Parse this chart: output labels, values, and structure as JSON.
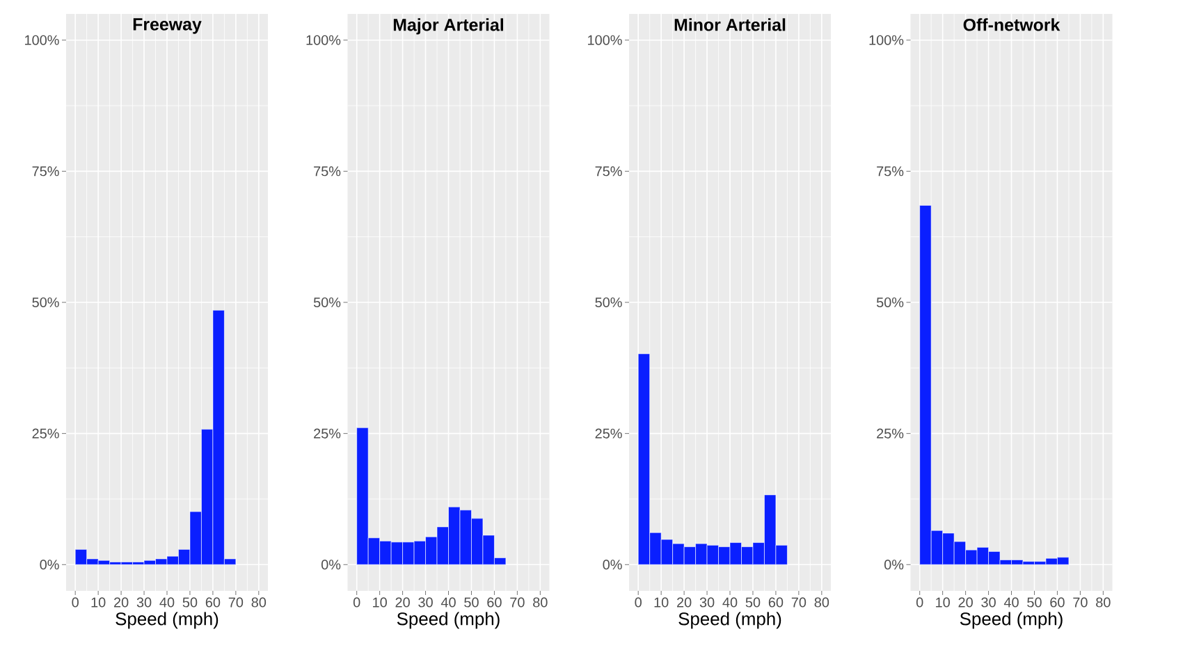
{
  "chart_data": [
    {
      "type": "histogram",
      "title": "Freeway",
      "xlabel": "Speed (mph)",
      "color": "#0a1fff",
      "grid": true,
      "bins": [
        0,
        5,
        10,
        15,
        20,
        25,
        30,
        35,
        40,
        45,
        50,
        55,
        60,
        65,
        70
      ],
      "values": [
        2.9,
        1.1,
        0.8,
        0.5,
        0.5,
        0.5,
        0.8,
        1.1,
        1.6,
        2.9,
        10.1,
        25.8,
        48.5,
        1.1
      ],
      "xlim": [
        -4,
        84
      ],
      "xticks": [
        0,
        10,
        20,
        30,
        40,
        50,
        60,
        70,
        80
      ],
      "ylim": [
        -5,
        105
      ],
      "yticks": [
        {
          "value": 0,
          "label": "0%"
        },
        {
          "value": 25,
          "label": "25%"
        },
        {
          "value": 50,
          "label": "50%"
        },
        {
          "value": 75,
          "label": "75%"
        },
        {
          "value": 100,
          "label": "100%"
        }
      ]
    },
    {
      "type": "histogram",
      "title": "Major Arterial",
      "xlabel": "Speed (mph)",
      "color": "#0a1fff",
      "grid": true,
      "bins": [
        0,
        5,
        10,
        15,
        20,
        25,
        30,
        35,
        40,
        45,
        50,
        55,
        60,
        65,
        70
      ],
      "values": [
        26.1,
        5.1,
        4.5,
        4.3,
        4.3,
        4.5,
        5.3,
        7.2,
        11.0,
        10.4,
        8.8,
        5.6,
        1.3,
        0
      ],
      "xlim": [
        -4,
        84
      ],
      "xticks": [
        0,
        10,
        20,
        30,
        40,
        50,
        60,
        70,
        80
      ],
      "ylim": [
        -5,
        105
      ],
      "yticks": [
        {
          "value": 0,
          "label": "0%"
        },
        {
          "value": 25,
          "label": "25%"
        },
        {
          "value": 50,
          "label": "50%"
        },
        {
          "value": 75,
          "label": "75%"
        },
        {
          "value": 100,
          "label": "100%"
        }
      ]
    },
    {
      "type": "histogram",
      "title": "Minor Arterial",
      "xlabel": "Speed (mph)",
      "color": "#0a1fff",
      "grid": true,
      "bins": [
        0,
        5,
        10,
        15,
        20,
        25,
        30,
        35,
        40,
        45,
        50,
        55,
        60,
        65,
        70
      ],
      "values": [
        40.2,
        6.1,
        4.8,
        4.0,
        3.4,
        4.0,
        3.7,
        3.4,
        4.2,
        3.4,
        4.2,
        13.3,
        3.7,
        0
      ],
      "xlim": [
        -4,
        84
      ],
      "xticks": [
        0,
        10,
        20,
        30,
        40,
        50,
        60,
        70,
        80
      ],
      "ylim": [
        -5,
        105
      ],
      "yticks": [
        {
          "value": 0,
          "label": "0%"
        },
        {
          "value": 25,
          "label": "25%"
        },
        {
          "value": 50,
          "label": "50%"
        },
        {
          "value": 75,
          "label": "75%"
        },
        {
          "value": 100,
          "label": "100%"
        }
      ]
    },
    {
      "type": "histogram",
      "title": "Off-network",
      "xlabel": "Speed (mph)",
      "color": "#0a1fff",
      "grid": true,
      "bins": [
        0,
        5,
        10,
        15,
        20,
        25,
        30,
        35,
        40,
        45,
        50,
        55,
        60,
        65,
        70
      ],
      "values": [
        68.5,
        6.5,
        6.0,
        4.4,
        2.8,
        3.3,
        2.5,
        0.9,
        0.9,
        0.6,
        0.6,
        1.2,
        1.4,
        0
      ],
      "xlim": [
        -4,
        84
      ],
      "xticks": [
        0,
        10,
        20,
        30,
        40,
        50,
        60,
        70,
        80
      ],
      "ylim": [
        -5,
        105
      ],
      "yticks": [
        {
          "value": 0,
          "label": "0%"
        },
        {
          "value": 25,
          "label": "25%"
        },
        {
          "value": 50,
          "label": "50%"
        },
        {
          "value": 75,
          "label": "75%"
        },
        {
          "value": 100,
          "label": "100%"
        }
      ]
    }
  ]
}
